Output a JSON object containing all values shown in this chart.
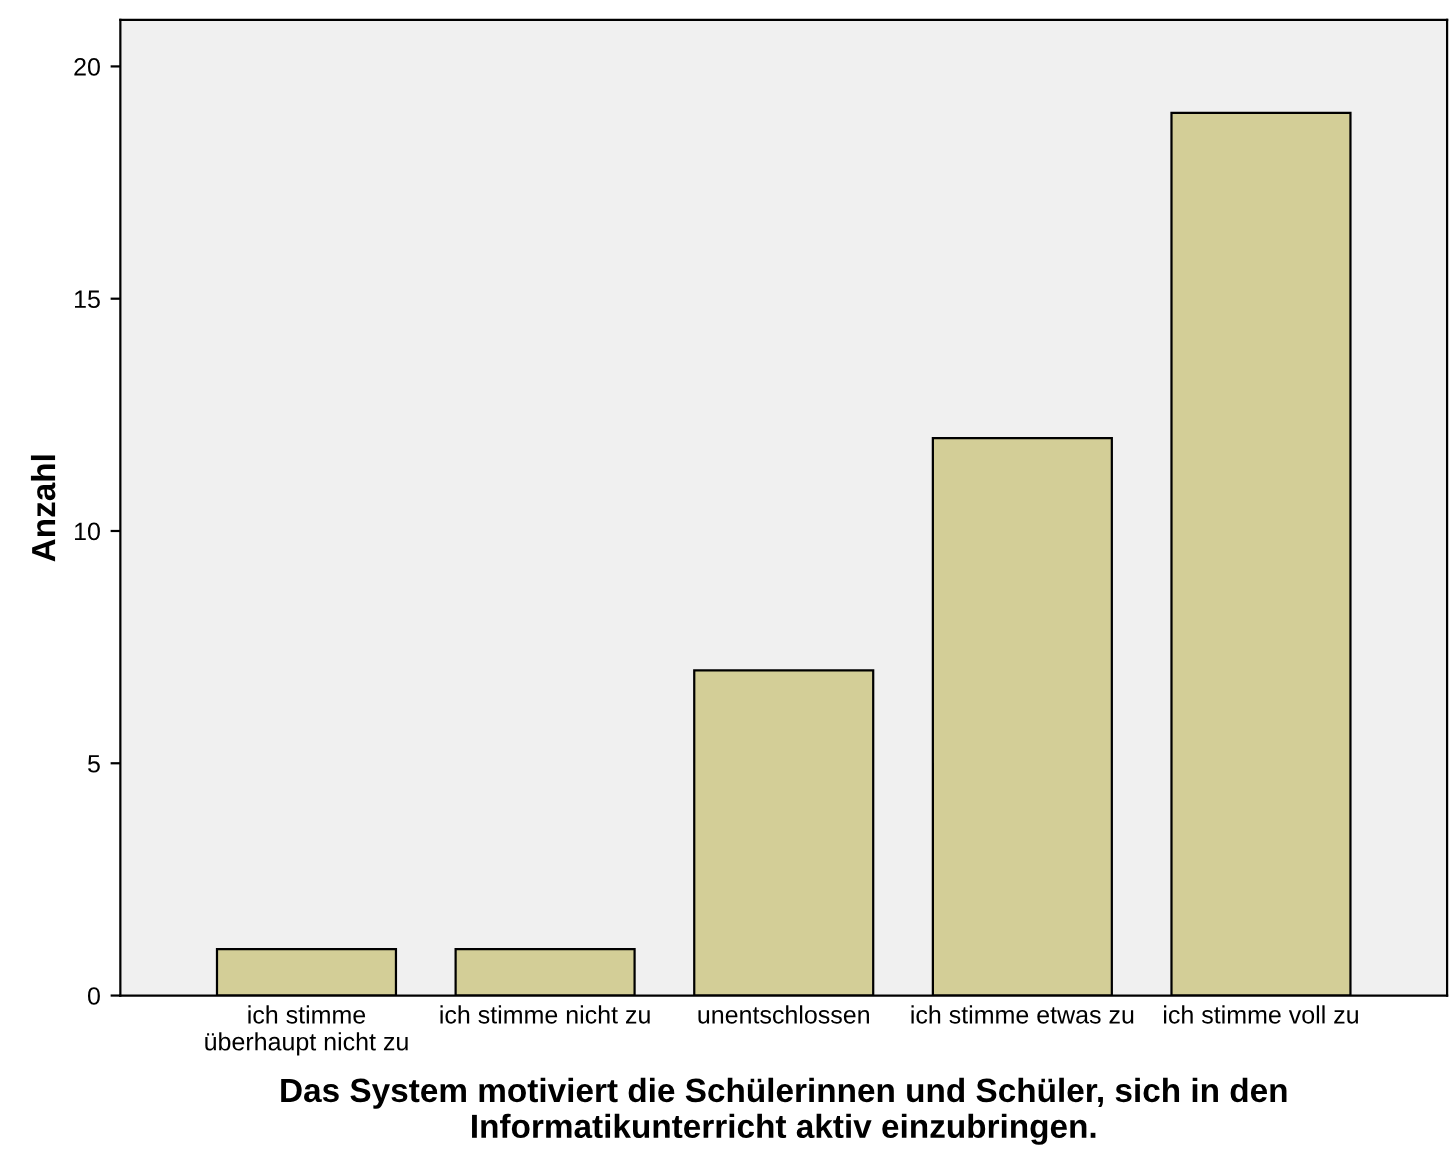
{
  "chart_data": {
    "type": "bar",
    "xlabel": "Das System motiviert die Schülerinnen und Schüler, sich in den Informatikunterricht aktiv einzubringen.",
    "ylabel": "Anzahl",
    "categories": [
      "ich stimme\nüberhaupt nicht zu",
      "ich stimme nicht zu",
      "unentschlossen",
      "ich stimme etwas zu",
      "ich stimme voll zu"
    ],
    "values": [
      1,
      1,
      7,
      12,
      19
    ],
    "color": "#d3ce97",
    "ylim": [
      0,
      21
    ],
    "yticks": [
      0,
      5,
      10,
      15,
      20
    ],
    "grid": false,
    "legend": false
  }
}
